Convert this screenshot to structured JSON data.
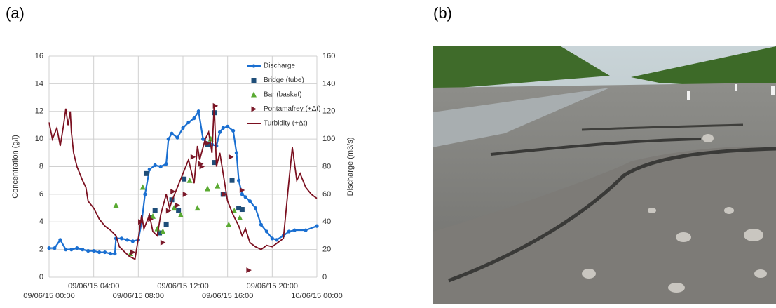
{
  "panel_labels": {
    "a": "(a)",
    "b": "(b)"
  },
  "chart_data": {
    "type": "line",
    "ylabel": "Concentration (g/l)",
    "y2label": "Discharge (m3/s)",
    "xlim": [
      0,
      24
    ],
    "xticks": [
      {
        "value": 0,
        "label": "09/06/15 00:00"
      },
      {
        "value": 4,
        "label": "09/06/15 04:00"
      },
      {
        "value": 8,
        "label": "09/06/15 08:00"
      },
      {
        "value": 12,
        "label": "09/06/15 12:00"
      },
      {
        "value": 16,
        "label": "09/06/15 16:00"
      },
      {
        "value": 20,
        "label": "09/06/15 20:00"
      },
      {
        "value": 24,
        "label": "10/06/15 00:00"
      }
    ],
    "ylim": [
      0,
      16
    ],
    "yticks": [
      0,
      2,
      4,
      6,
      8,
      10,
      12,
      14,
      16
    ],
    "y2lim": [
      0,
      160
    ],
    "y2ticks": [
      0,
      20,
      40,
      60,
      80,
      100,
      120,
      140,
      160
    ],
    "grid": true,
    "legend": "top-right",
    "series": [
      {
        "name": "Discharge",
        "color": "#1a6fd1",
        "axis": "y2",
        "marker": "line-circle",
        "x": [
          0,
          0.5,
          1,
          1.5,
          2,
          2.5,
          3,
          3.5,
          4,
          4.5,
          5,
          5.5,
          5.9,
          6,
          6.5,
          7,
          7.5,
          8,
          8.3,
          8.6,
          9,
          9.5,
          10,
          10.5,
          10.7,
          11,
          11.5,
          12,
          12.5,
          13,
          13.4,
          13.8,
          14.2,
          14.6,
          15,
          15.3,
          15.6,
          16,
          16.5,
          16.8,
          17,
          17.3,
          17.6,
          18,
          18.5,
          19,
          19.5,
          20,
          20.4,
          21,
          21.5,
          22,
          23,
          24
        ],
        "values": [
          21,
          21,
          27,
          20,
          20,
          21,
          20,
          19,
          19,
          18,
          18,
          17,
          17,
          28,
          28,
          27,
          26,
          27,
          40,
          60,
          78,
          81,
          80,
          82,
          100,
          104,
          101,
          108,
          112,
          115,
          120,
          100,
          97,
          96,
          95,
          105,
          108,
          109,
          106,
          90,
          70,
          60,
          58,
          55,
          50,
          38,
          33,
          28,
          27,
          30,
          33,
          34,
          34,
          37
        ]
      },
      {
        "name": "Bridge (tube)",
        "color": "#1f4e79",
        "marker": "square",
        "x": [
          8.7,
          9.1,
          9.5,
          9.9,
          10.5,
          11,
          11.6,
          12.1,
          14.2,
          14.8,
          14.8,
          15.6,
          16.4,
          17,
          17.3
        ],
        "values": [
          7.5,
          4.3,
          4.8,
          3.2,
          3.8,
          5.6,
          4.8,
          7.1,
          9.6,
          8.3,
          11.9,
          6,
          7,
          5,
          4.9
        ]
      },
      {
        "name": "Bar (basket)",
        "color": "#5aaa32",
        "marker": "triangle",
        "x": [
          6,
          7.3,
          8.4,
          9.3,
          9.7,
          10.2,
          11.2,
          11.8,
          12.6,
          13.3,
          14.2,
          14.5,
          15.1,
          16.1,
          16.6,
          17.1
        ],
        "values": [
          5.2,
          1.7,
          6.5,
          4.4,
          3.5,
          3.3,
          5,
          4.5,
          7,
          5,
          6.4,
          10,
          6.6,
          3.8,
          4.8,
          4.3
        ]
      },
      {
        "name": "Pontamafrey (+Δt)",
        "color": "#7b1a2a",
        "marker": "right-triangle",
        "x": [
          7.5,
          8.2,
          9.1,
          10.2,
          10.7,
          11.1,
          11.5,
          12.2,
          12.9,
          13.6,
          13.7,
          14.2,
          14.9,
          15.7,
          16.3,
          17.3,
          17.9
        ],
        "values": [
          1.8,
          4,
          4.2,
          2.5,
          4.8,
          6.2,
          5.2,
          6,
          8.7,
          8.2,
          8,
          9.7,
          12.4,
          6,
          8.7,
          6.3,
          0.5
        ]
      },
      {
        "name": "Turbidity (+Δt)",
        "color": "#7b1020",
        "marker": "line",
        "x": [
          0,
          0.3,
          0.7,
          1,
          1.3,
          1.5,
          1.7,
          1.9,
          2,
          2.2,
          2.5,
          3,
          3.3,
          3.5,
          4,
          4.5,
          5,
          5.5,
          6,
          6.3,
          6.8,
          7.2,
          7.7,
          8,
          8.3,
          8.5,
          9,
          9.3,
          9.7,
          10,
          10.5,
          10.8,
          11,
          11.5,
          12,
          12.5,
          13,
          13.3,
          13.5,
          14,
          14.3,
          14.6,
          14.8,
          15,
          15.3,
          15.6,
          16,
          16.5,
          17,
          17.3,
          17.6,
          18,
          18.5,
          19,
          19.5,
          20,
          20.5,
          21,
          21.5,
          21.8,
          22.2,
          22.5,
          23,
          23.5,
          24
        ],
        "values": [
          11.2,
          10,
          10.8,
          9.5,
          11,
          12.2,
          11,
          12,
          10.5,
          9,
          8,
          7,
          6.5,
          5.5,
          5,
          4.2,
          3.7,
          3.4,
          3,
          2.2,
          1.8,
          1.5,
          1.3,
          2.8,
          4.5,
          3.5,
          4.5,
          3.3,
          3,
          4.5,
          6,
          5,
          5.5,
          6.5,
          7.5,
          8.5,
          6.8,
          9.5,
          8.5,
          10,
          10.5,
          9,
          12.5,
          8,
          9,
          7.5,
          5.5,
          4.5,
          3.7,
          3,
          3.5,
          2.5,
          2.2,
          2,
          2.3,
          2.2,
          2.5,
          2.8,
          7,
          9.4,
          7,
          7.5,
          6.5,
          6,
          5.7
        ]
      }
    ]
  }
}
